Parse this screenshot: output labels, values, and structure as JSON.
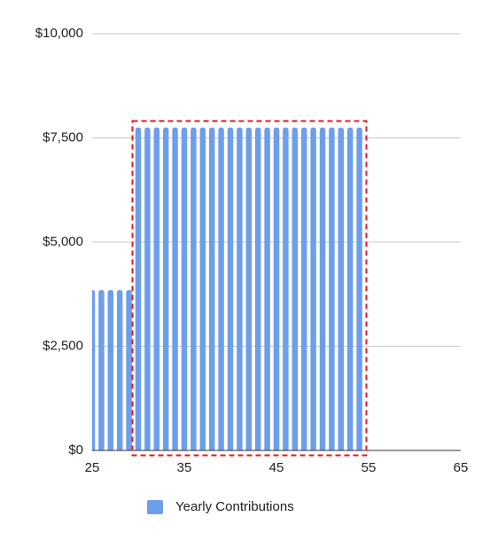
{
  "chart_data": {
    "type": "bar",
    "x": [
      25,
      26,
      27,
      28,
      29,
      30,
      31,
      32,
      33,
      34,
      35,
      36,
      37,
      38,
      39,
      40,
      41,
      42,
      43,
      44,
      45,
      46,
      47,
      48,
      49,
      50,
      51,
      52,
      53,
      54
    ],
    "series": [
      {
        "name": "Yearly Contributions",
        "color": "#6d9eeb",
        "values": [
          3850,
          3850,
          3850,
          3850,
          3850,
          7750,
          7750,
          7750,
          7750,
          7750,
          7750,
          7750,
          7750,
          7750,
          7750,
          7750,
          7750,
          7750,
          7750,
          7750,
          7750,
          7750,
          7750,
          7750,
          7750,
          7750,
          7750,
          7750,
          7750,
          7750
        ]
      }
    ],
    "xlim": [
      25,
      65
    ],
    "xticks": [
      25,
      35,
      45,
      55,
      65
    ],
    "ylim": [
      0,
      10000
    ],
    "yticks": [
      {
        "value": 0,
        "label": "$0"
      },
      {
        "value": 2500,
        "label": "$2,500"
      },
      {
        "value": 5000,
        "label": "$5,000"
      },
      {
        "value": 7500,
        "label": "$7,500"
      },
      {
        "value": 10000,
        "label": "$10,000"
      }
    ],
    "grid": true
  }
}
